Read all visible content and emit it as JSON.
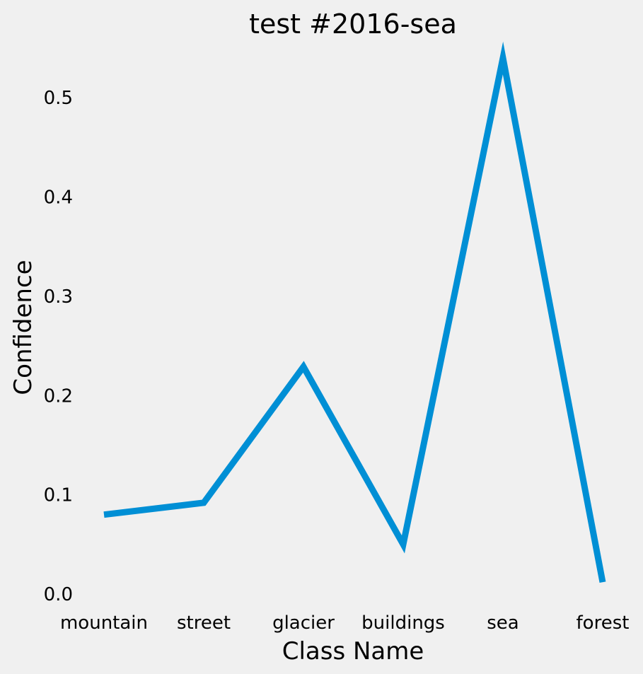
{
  "chart_data": {
    "type": "line",
    "title": "test #2016-sea",
    "xlabel": "Class Name",
    "ylabel": "Confidence",
    "categories": [
      "mountain",
      "street",
      "glacier",
      "buildings",
      "sea",
      "forest"
    ],
    "series": [
      {
        "values": [
          0.08,
          0.092,
          0.229,
          0.05,
          0.54,
          0.012
        ]
      }
    ],
    "ylim": [
      0.0,
      0.55
    ],
    "yticks": [
      "0.0",
      "0.1",
      "0.2",
      "0.3",
      "0.4",
      "0.5"
    ],
    "grid": false,
    "line_color": "#008fd5",
    "background_color": "#f0f0f0"
  }
}
